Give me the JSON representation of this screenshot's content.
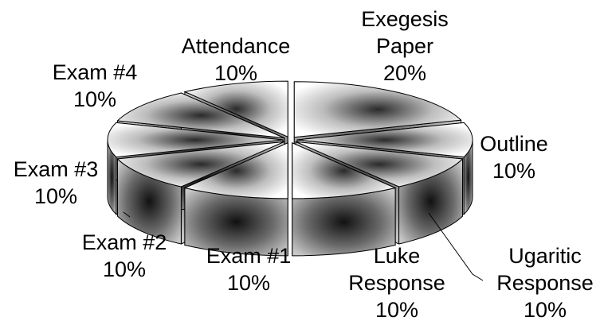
{
  "chart_data": {
    "type": "pie",
    "style": "3d-exploded-gradient",
    "grid": false,
    "legend": "none",
    "slices": [
      {
        "label_lines": [
          "Exegesis",
          "Paper"
        ],
        "value_label": "20%",
        "value": 20
      },
      {
        "label_lines": [
          "Outline"
        ],
        "value_label": "10%",
        "value": 10
      },
      {
        "label_lines": [
          "Ugaritic",
          "Response"
        ],
        "value_label": "10%",
        "value": 10
      },
      {
        "label_lines": [
          "Luke",
          "Response"
        ],
        "value_label": "10%",
        "value": 10
      },
      {
        "label_lines": [
          "Exam #1"
        ],
        "value_label": "10%",
        "value": 10
      },
      {
        "label_lines": [
          "Exam #2"
        ],
        "value_label": "10%",
        "value": 10
      },
      {
        "label_lines": [
          "Exam #3"
        ],
        "value_label": "10%",
        "value": 10
      },
      {
        "label_lines": [
          "Exam #4"
        ],
        "value_label": "10%",
        "value": 10
      },
      {
        "label_lines": [
          "Attendance"
        ],
        "value_label": "10%",
        "value": 10
      }
    ],
    "colors": {
      "light": "#ffffff",
      "mid": "#9a9a9a",
      "dark": "#1a1a1a",
      "outline": "#000000"
    }
  }
}
